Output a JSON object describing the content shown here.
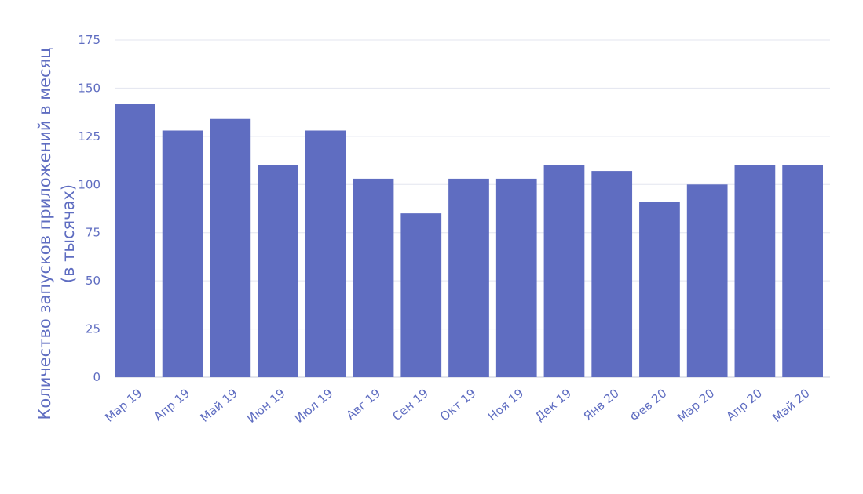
{
  "colors": {
    "bar": "#5F6DC1",
    "text": "#5F6DC1",
    "grid": "#E3E5EF",
    "axis": "#C9CCDA"
  },
  "chart_data": {
    "type": "bar",
    "title": "",
    "xlabel": "",
    "ylabel_lines": [
      "Количество запусков приложений в месяц",
      "(в тысячах)"
    ],
    "categories": [
      "Мар 19",
      "Апр 19",
      "Май 19",
      "Июн 19",
      "Июл 19",
      "Авг 19",
      "Сен 19",
      "Окт 19",
      "Ноя 19",
      "Дек 19",
      "Янв 20",
      "Фев 20",
      "Мар 20",
      "Апр 20",
      "Май 20"
    ],
    "values": [
      142,
      128,
      134,
      110,
      128,
      103,
      85,
      103,
      103,
      110,
      107,
      91,
      100,
      110,
      110
    ],
    "yticks": [
      0,
      25,
      50,
      75,
      100,
      125,
      150,
      175
    ],
    "ylim": [
      0,
      175
    ],
    "grid": true,
    "legend": "none"
  }
}
